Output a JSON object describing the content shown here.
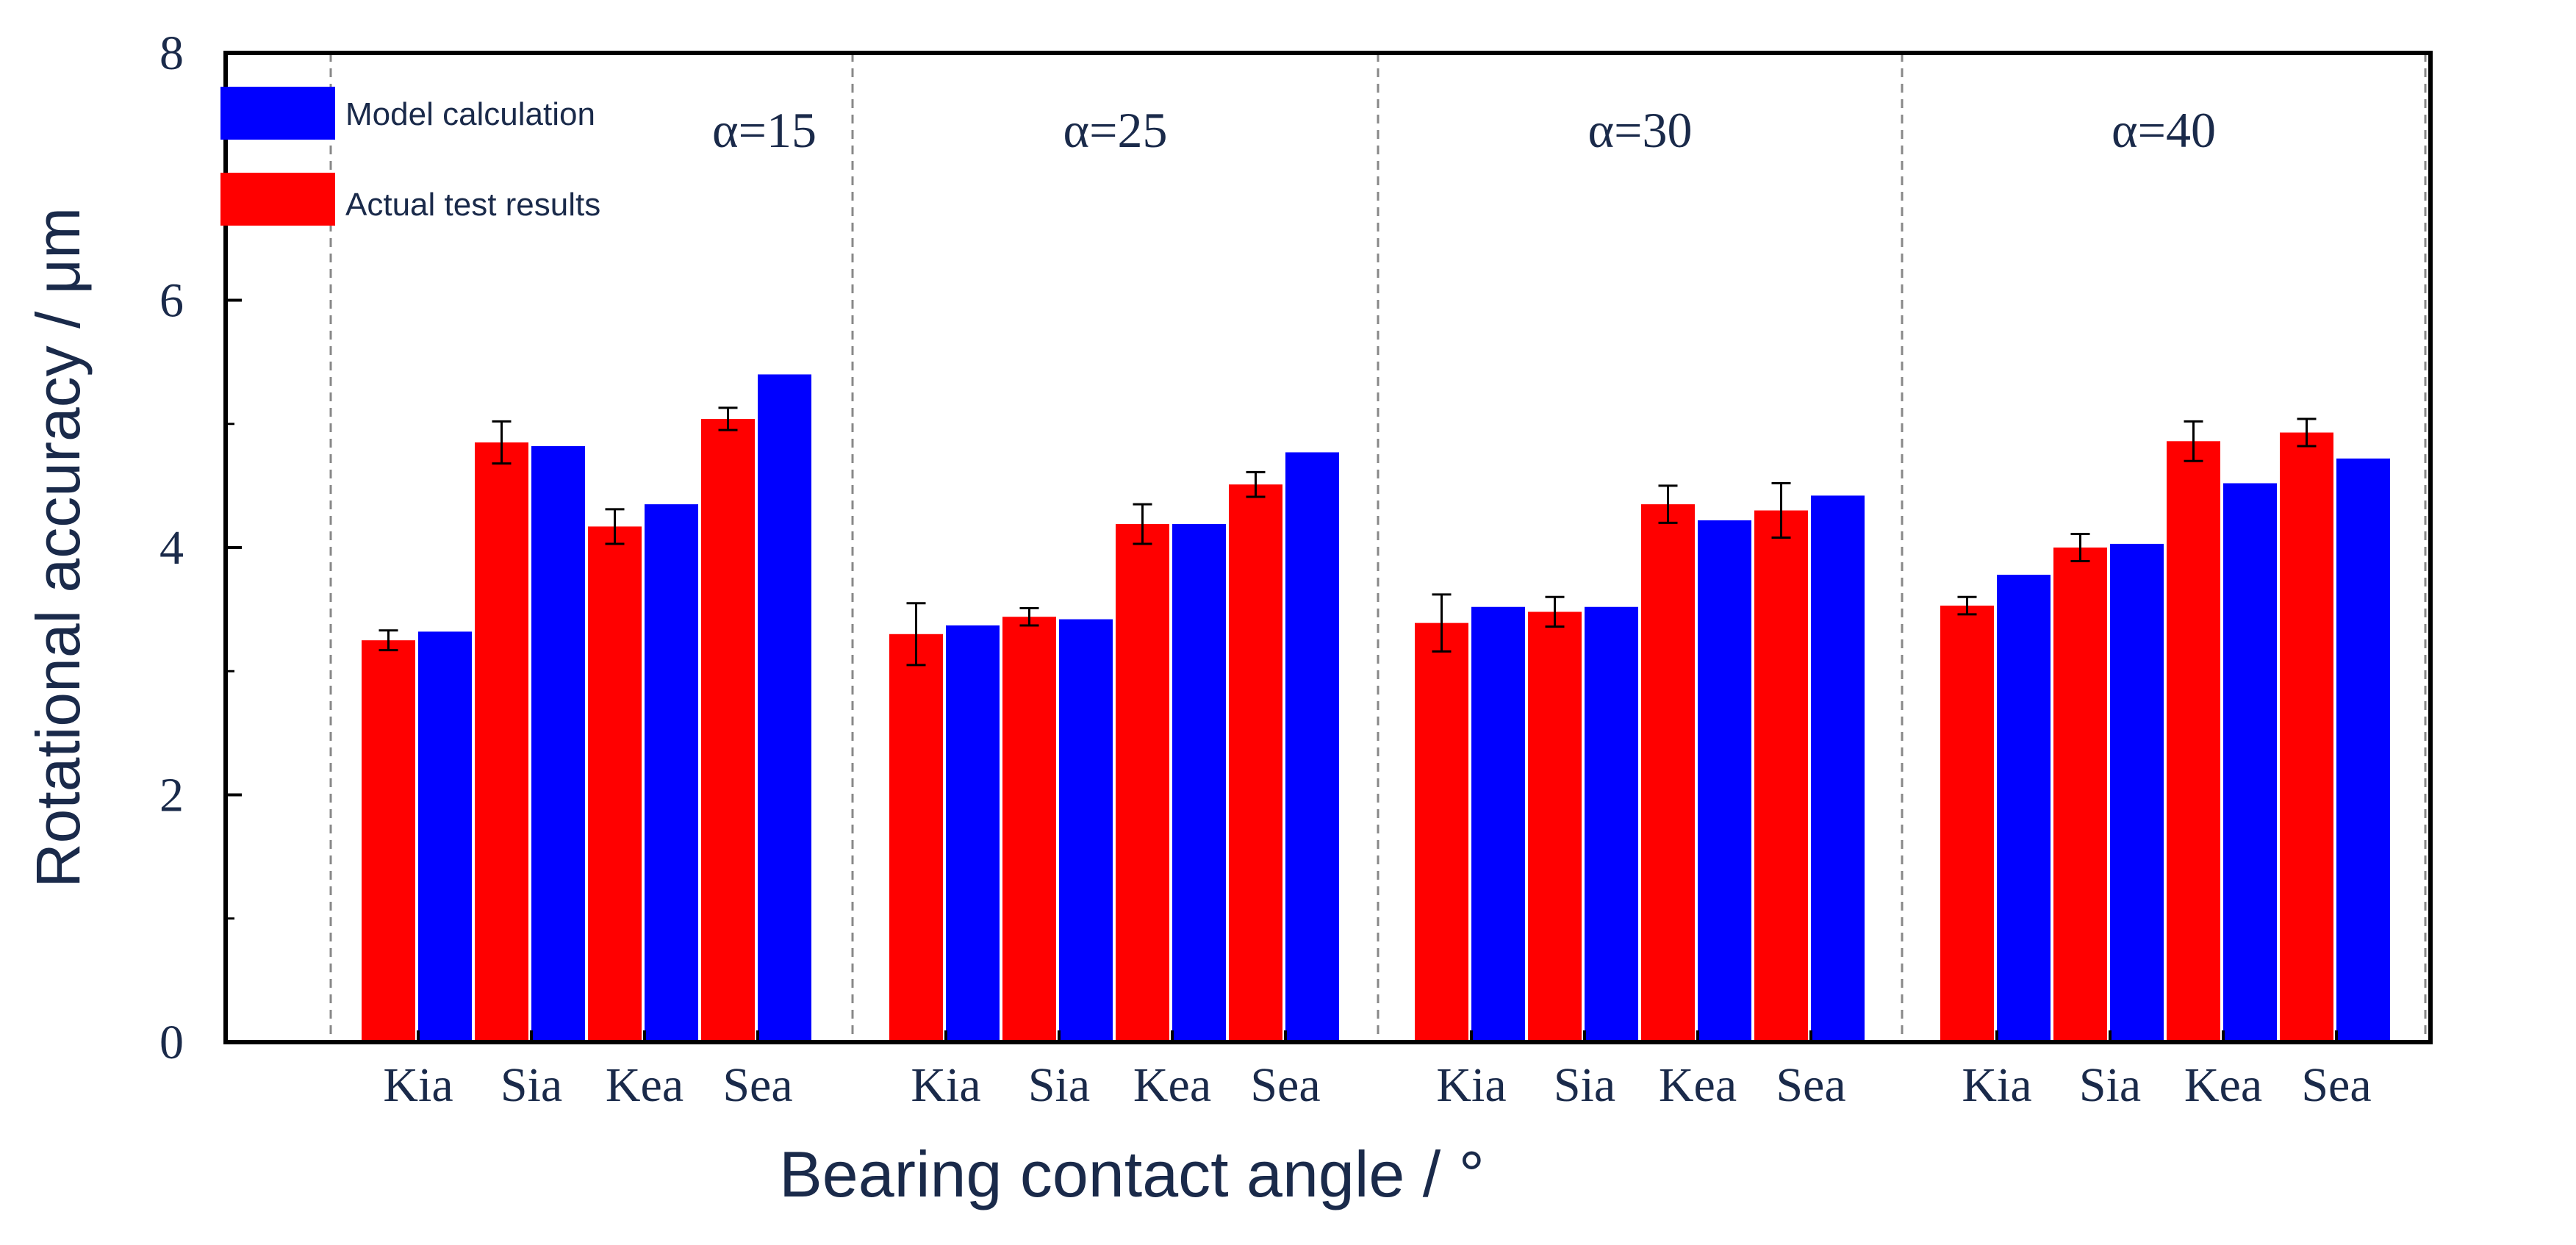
{
  "chart_data": {
    "type": "bar",
    "xlabel": "Bearing contact angle / °",
    "ylabel": "Rotational accuracy / μm",
    "ylim": [
      0,
      8
    ],
    "yticks": [
      "0",
      "2",
      "4",
      "6",
      "8"
    ],
    "categories": [
      "Kia",
      "Sia",
      "Kea",
      "Sea"
    ],
    "groups": [
      {
        "label": "α=15",
        "actual": [
          3.25,
          4.85,
          4.17,
          5.04
        ],
        "actual_err": [
          0.08,
          0.17,
          0.14,
          0.09
        ],
        "model": [
          3.32,
          4.82,
          4.35,
          5.4
        ]
      },
      {
        "label": "α=25",
        "actual": [
          3.3,
          3.44,
          4.19,
          4.51
        ],
        "actual_err": [
          0.25,
          0.07,
          0.16,
          0.1
        ],
        "model": [
          3.37,
          3.42,
          4.19,
          4.77
        ]
      },
      {
        "label": "α=30",
        "actual": [
          3.39,
          3.48,
          4.35,
          4.3
        ],
        "actual_err": [
          0.23,
          0.12,
          0.15,
          0.22
        ],
        "model": [
          3.52,
          3.52,
          4.22,
          4.42
        ]
      },
      {
        "label": "α=40",
        "actual": [
          3.53,
          4.0,
          4.86,
          4.93
        ],
        "actual_err": [
          0.07,
          0.11,
          0.16,
          0.11
        ],
        "model": [
          3.78,
          4.03,
          4.52,
          4.72
        ]
      }
    ],
    "series": [
      {
        "name": "Model calculation",
        "key": "model",
        "color": "#0000ff"
      },
      {
        "name": "Actual test results",
        "key": "actual",
        "color": "#ff0000"
      }
    ],
    "legend_position": "top-left",
    "separators": "dashed vertical lines between groups",
    "text_color": "#1a2a4a"
  }
}
